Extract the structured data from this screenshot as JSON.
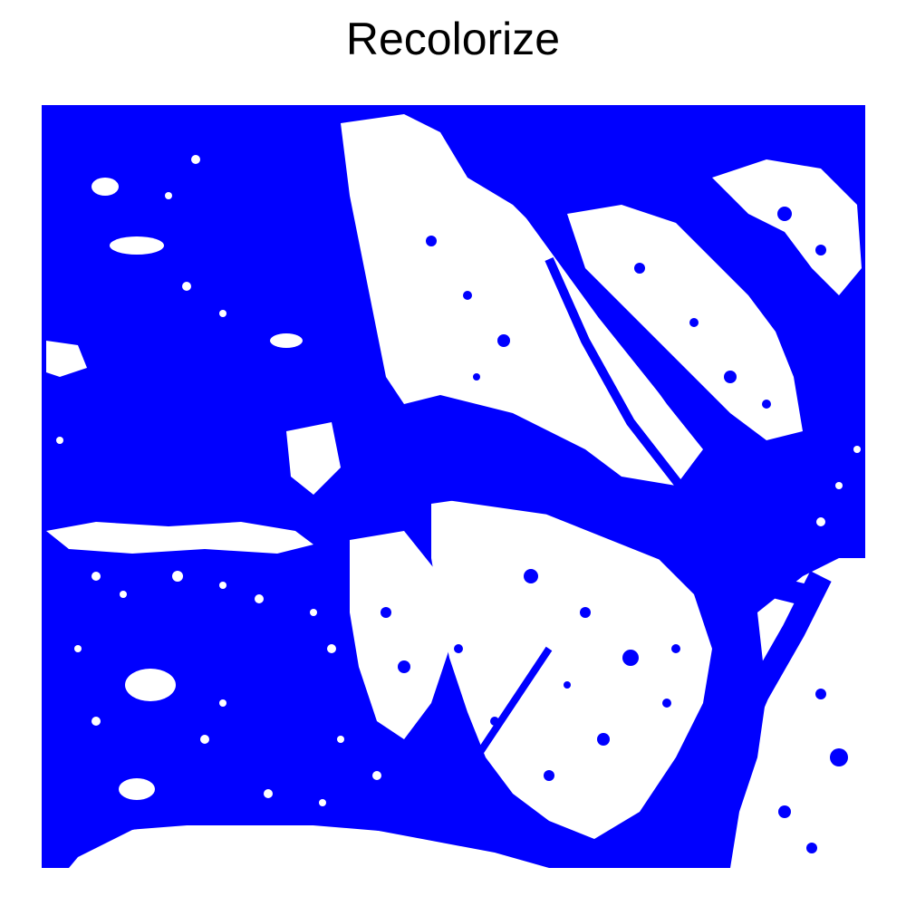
{
  "figure": {
    "title": "Recolorize"
  },
  "image": {
    "description_colors": {
      "water_class": "#0000ff",
      "land_class": "#ffffff"
    }
  }
}
